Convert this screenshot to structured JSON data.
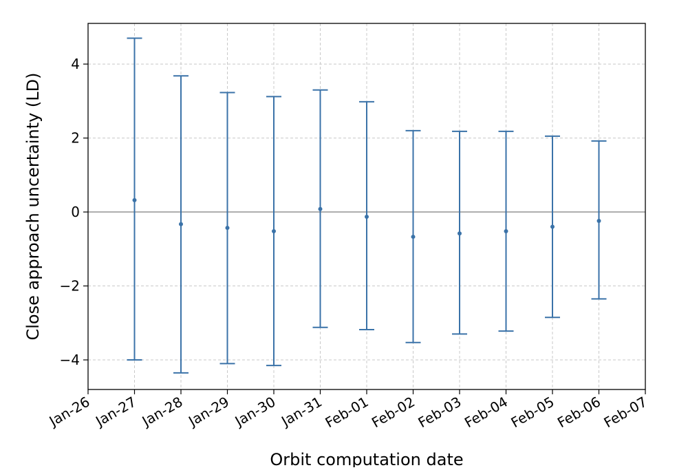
{
  "chart_data": {
    "type": "scatter",
    "title": "",
    "xlabel": "Orbit computation date",
    "ylabel": "Close approach uncertainty (LD)",
    "x_tick_labels": [
      "Jan-26",
      "Jan-27",
      "Jan-28",
      "Jan-29",
      "Jan-30",
      "Jan-31",
      "Feb-01",
      "Feb-02",
      "Feb-03",
      "Feb-04",
      "Feb-05",
      "Feb-06",
      "Feb-07"
    ],
    "y_tick_labels": [
      "−4",
      "−2",
      "0",
      "2",
      "4"
    ],
    "y_ticks": [
      -4,
      -2,
      0,
      2,
      4
    ],
    "ylim": [
      -4.8,
      5.1
    ],
    "grid": true,
    "zero_line": 0,
    "points": [
      {
        "x": "Jan-27",
        "y": 0.32,
        "err_low": -4.0,
        "err_high": 4.7
      },
      {
        "x": "Jan-28",
        "y": -0.33,
        "err_low": -4.35,
        "err_high": 3.68
      },
      {
        "x": "Jan-29",
        "y": -0.43,
        "err_low": -4.1,
        "err_high": 3.23
      },
      {
        "x": "Jan-30",
        "y": -0.52,
        "err_low": -4.15,
        "err_high": 3.12
      },
      {
        "x": "Jan-31",
        "y": 0.08,
        "err_low": -3.12,
        "err_high": 3.3
      },
      {
        "x": "Feb-01",
        "y": -0.13,
        "err_low": -3.18,
        "err_high": 2.98
      },
      {
        "x": "Feb-02",
        "y": -0.67,
        "err_low": -3.53,
        "err_high": 2.2
      },
      {
        "x": "Feb-03",
        "y": -0.58,
        "err_low": -3.3,
        "err_high": 2.18
      },
      {
        "x": "Feb-04",
        "y": -0.52,
        "err_low": -3.22,
        "err_high": 2.18
      },
      {
        "x": "Feb-05",
        "y": -0.4,
        "err_low": -2.85,
        "err_high": 2.05
      },
      {
        "x": "Feb-06",
        "y": -0.24,
        "err_low": -2.35,
        "err_high": 1.92
      }
    ],
    "colors": {
      "series": "#3a72a8",
      "zero_line": "#b0b0b0",
      "grid": "#c8c8c8"
    }
  }
}
